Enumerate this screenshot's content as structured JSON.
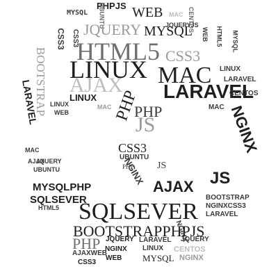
{
  "title": "",
  "colors": {
    "background": "#ffffff",
    "black": "#1e1e1e",
    "dark": "#3a3a3a",
    "mid": "#6f6f6f",
    "light": "#9a9a9a",
    "pale": "#bdbdbd"
  },
  "words": [
    "PHPJS",
    "WEB",
    "MAC",
    "MYSQL",
    "UBUNTU",
    "JQUERY",
    "CENTOS",
    "MYSQL",
    "HTML5",
    "CSS3",
    "LINUX",
    "MAC",
    "AJAX",
    "LARAVEL",
    "BOOTSTRAP",
    "LINUX",
    "PHP",
    "PHP",
    "JS",
    "NGINX",
    "LARAVEL",
    "CSS3",
    "UBUNTU",
    "AJAX",
    "JS",
    "MYSQLPHP",
    "SQLSEVER",
    "SQLSEVER",
    "BOOTSTRAPPHPJS",
    "JQUERY",
    "PHP",
    "NGINX",
    "WEB",
    "CSS3",
    "MYSQL",
    "NGINX",
    "LINUX",
    "CENTOS",
    "BOOTSTRAP",
    "NGINXCSS3",
    "LARAVEL",
    "NGINX",
    "JQUERYJS",
    "MYSQL",
    "HTML5",
    "WEB",
    "CSS3",
    "CENTOS",
    "MAC",
    "LINUX",
    "LARAVEL",
    "NGINX",
    "CSS3",
    "JQUERY",
    "WEB",
    "AJAX",
    "MAC",
    "HTML5",
    "JQUERY",
    "LARAVEL",
    "AJAXWEB",
    "LINUX",
    "UBUNTU",
    "JS",
    "PHP",
    "MAC"
  ]
}
